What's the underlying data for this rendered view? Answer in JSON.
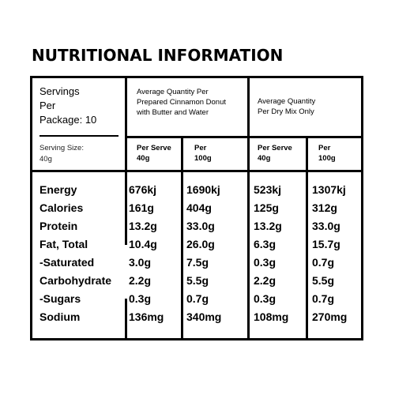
{
  "title": "NUTRITIONAL INFORMATION",
  "header": {
    "servings": [
      "Servings",
      "Per",
      "Package: 10"
    ],
    "serving_size": [
      "Serving Size:",
      "40g"
    ],
    "prepared": [
      "Average Quantity Per",
      "Prepared Cinnamon Donut",
      "with Butter and Water"
    ],
    "dry_mix": [
      "Average Quantity",
      "Per Dry Mix Only"
    ],
    "columns": [
      [
        "Per Serve",
        "40g"
      ],
      [
        "Per",
        "100g"
      ],
      [
        "Per Serve",
        "40g"
      ],
      [
        "Per",
        "100g"
      ]
    ]
  },
  "rows": [
    {
      "label": "Energy",
      "values": [
        "676kj",
        "1690kj",
        "523kj",
        "1307kj"
      ]
    },
    {
      "label": "Calories",
      "values": [
        "161g",
        "404g",
        "125g",
        "312g"
      ]
    },
    {
      "label": "Protein",
      "values": [
        "13.2g",
        "33.0g",
        "13.2g",
        "33.0g"
      ]
    },
    {
      "label": "Fat, Total",
      "values": [
        "10.4g",
        "26.0g",
        "6.3g",
        "15.7g"
      ]
    },
    {
      "label": "-Saturated",
      "values": [
        "3.0g",
        "7.5g",
        "0.3g",
        "0.7g"
      ]
    },
    {
      "label": "Carbohydrate",
      "values": [
        "2.2g",
        "5.5g",
        "2.2g",
        "5.5g"
      ]
    },
    {
      "label": "-Sugars",
      "values": [
        "0.3g",
        "0.7g",
        "0.3g",
        "0.7g"
      ]
    },
    {
      "label": "Sodium",
      "values": [
        "136mg",
        "340mg",
        "108mg",
        "270mg"
      ]
    }
  ]
}
